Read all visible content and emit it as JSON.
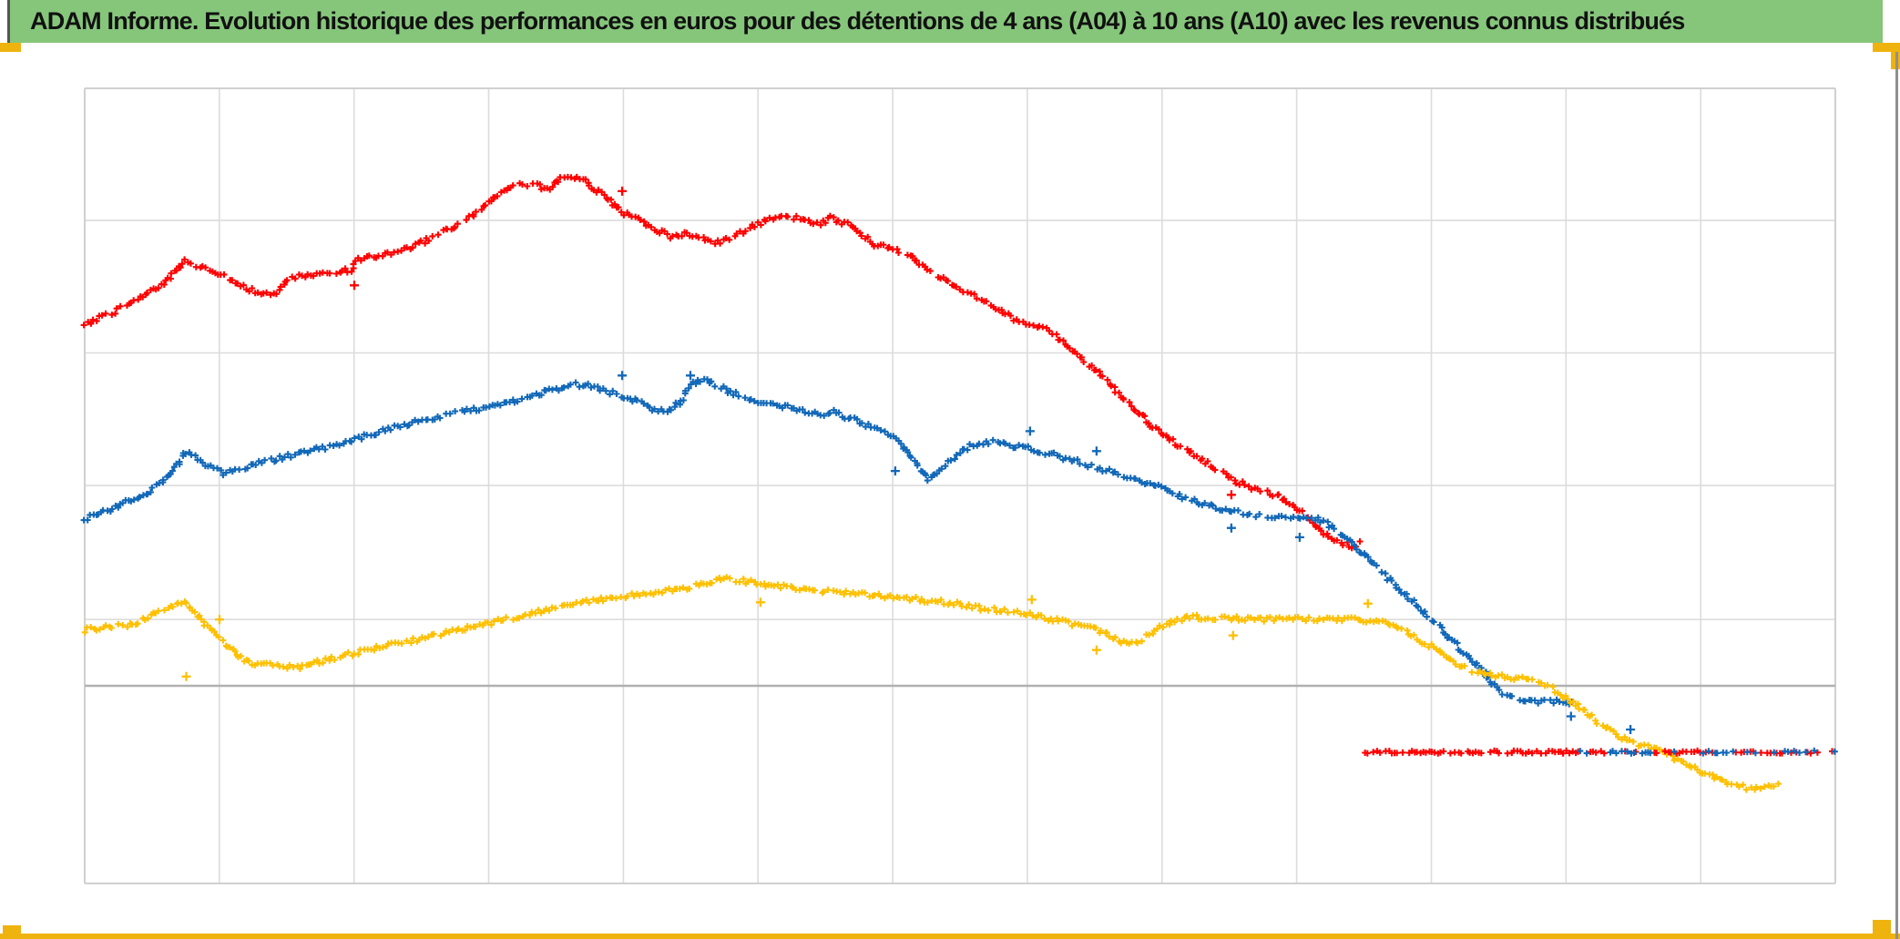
{
  "header": {
    "title": "ADAM Informe. Evolution historique des performances en euros pour des détentions de 4 ans (A04) à 10 ans (A10) avec les revenus connus distribués",
    "bg_color": "#86C67B",
    "text_color": "#111111"
  },
  "decor": {
    "accent_gold": "#EFB310",
    "window_edge_gray": "#909090",
    "banner_left_edge": "#555555"
  },
  "chart_data": {
    "type": "scatter",
    "marker": "+",
    "title": "",
    "xlabel": "",
    "ylabel": "",
    "axes_note": "No axis tick labels are visible in the chart. x is stored as fraction (0-1) of plot width; y is stored in gridline units relative to the darker horizontal reference line (1 unit = one major gridline spacing).",
    "grid": {
      "v_line_count": 14,
      "h_lines_units": [
        3.51,
        2.51,
        1.51,
        0.5
      ],
      "dark_line_unit": 0,
      "top_unit": 4.5,
      "bottom_unit": -1.49,
      "gridline_color": "#DCDCDC",
      "border_color": "#D0D0D0",
      "dark_line_color": "#B0B0B0"
    },
    "series": [
      {
        "name": "series-red",
        "color": "#FE0000",
        "points": [
          [
            0.0,
            2.73
          ],
          [
            0.014,
            2.8
          ],
          [
            0.03,
            2.91
          ],
          [
            0.045,
            3.03
          ],
          [
            0.057,
            3.2
          ],
          [
            0.071,
            3.14
          ],
          [
            0.086,
            3.04
          ],
          [
            0.097,
            2.97
          ],
          [
            0.11,
            2.96
          ],
          [
            0.117,
            3.08
          ],
          [
            0.131,
            3.1
          ],
          [
            0.144,
            3.12
          ],
          [
            0.152,
            3.14
          ],
          [
            0.156,
            3.22
          ],
          [
            0.17,
            3.24
          ],
          [
            0.186,
            3.3
          ],
          [
            0.2,
            3.39
          ],
          [
            0.212,
            3.47
          ],
          [
            0.224,
            3.57
          ],
          [
            0.233,
            3.67
          ],
          [
            0.241,
            3.73
          ],
          [
            0.248,
            3.8
          ],
          [
            0.258,
            3.77
          ],
          [
            0.266,
            3.75
          ],
          [
            0.272,
            3.82
          ],
          [
            0.285,
            3.82
          ],
          [
            0.291,
            3.75
          ],
          [
            0.299,
            3.67
          ],
          [
            0.308,
            3.56
          ],
          [
            0.316,
            3.52
          ],
          [
            0.325,
            3.45
          ],
          [
            0.336,
            3.38
          ],
          [
            0.344,
            3.41
          ],
          [
            0.353,
            3.37
          ],
          [
            0.363,
            3.34
          ],
          [
            0.378,
            3.44
          ],
          [
            0.391,
            3.52
          ],
          [
            0.402,
            3.54
          ],
          [
            0.41,
            3.52
          ],
          [
            0.42,
            3.48
          ],
          [
            0.426,
            3.53
          ],
          [
            0.436,
            3.48
          ],
          [
            0.451,
            3.33
          ],
          [
            0.469,
            3.27
          ],
          [
            0.478,
            3.16
          ],
          [
            0.495,
            3.03
          ],
          [
            0.514,
            2.9
          ],
          [
            0.531,
            2.77
          ],
          [
            0.549,
            2.69
          ],
          [
            0.563,
            2.55
          ],
          [
            0.578,
            2.37
          ],
          [
            0.594,
            2.16
          ],
          [
            0.609,
            1.97
          ],
          [
            0.623,
            1.83
          ],
          [
            0.634,
            1.74
          ],
          [
            0.646,
            1.64
          ],
          [
            0.658,
            1.54
          ],
          [
            0.67,
            1.48
          ],
          [
            0.681,
            1.44
          ],
          [
            0.694,
            1.32
          ],
          [
            0.705,
            1.18
          ],
          [
            0.712,
            1.11
          ],
          [
            0.721,
            1.07
          ],
          [
            0.725,
            1.04
          ],
          [
            0.73,
            1.1
          ]
        ]
      },
      {
        "name": "series-blue",
        "color": "#1268B8",
        "points": [
          [
            0.0,
            1.26
          ],
          [
            0.011,
            1.31
          ],
          [
            0.022,
            1.38
          ],
          [
            0.035,
            1.44
          ],
          [
            0.048,
            1.59
          ],
          [
            0.058,
            1.76
          ],
          [
            0.069,
            1.67
          ],
          [
            0.079,
            1.6
          ],
          [
            0.088,
            1.63
          ],
          [
            0.1,
            1.68
          ],
          [
            0.113,
            1.72
          ],
          [
            0.129,
            1.77
          ],
          [
            0.144,
            1.82
          ],
          [
            0.16,
            1.88
          ],
          [
            0.175,
            1.94
          ],
          [
            0.191,
            2.0
          ],
          [
            0.207,
            2.04
          ],
          [
            0.222,
            2.08
          ],
          [
            0.238,
            2.12
          ],
          [
            0.251,
            2.16
          ],
          [
            0.264,
            2.22
          ],
          [
            0.281,
            2.27
          ],
          [
            0.288,
            2.27
          ],
          [
            0.298,
            2.22
          ],
          [
            0.307,
            2.19
          ],
          [
            0.316,
            2.14
          ],
          [
            0.326,
            2.08
          ],
          [
            0.334,
            2.07
          ],
          [
            0.341,
            2.15
          ],
          [
            0.347,
            2.29
          ],
          [
            0.355,
            2.31
          ],
          [
            0.363,
            2.25
          ],
          [
            0.372,
            2.2
          ],
          [
            0.381,
            2.16
          ],
          [
            0.395,
            2.12
          ],
          [
            0.41,
            2.07
          ],
          [
            0.424,
            2.04
          ],
          [
            0.426,
            2.07
          ],
          [
            0.436,
            2.02
          ],
          [
            0.443,
            1.99
          ],
          [
            0.451,
            1.94
          ],
          [
            0.459,
            1.9
          ],
          [
            0.464,
            1.86
          ],
          [
            0.469,
            1.77
          ],
          [
            0.476,
            1.65
          ],
          [
            0.482,
            1.55
          ],
          [
            0.49,
            1.65
          ],
          [
            0.498,
            1.74
          ],
          [
            0.506,
            1.81
          ],
          [
            0.515,
            1.83
          ],
          [
            0.52,
            1.84
          ],
          [
            0.528,
            1.81
          ],
          [
            0.541,
            1.79
          ],
          [
            0.554,
            1.74
          ],
          [
            0.567,
            1.69
          ],
          [
            0.58,
            1.64
          ],
          [
            0.596,
            1.58
          ],
          [
            0.607,
            1.53
          ],
          [
            0.617,
            1.5
          ],
          [
            0.621,
            1.46
          ],
          [
            0.632,
            1.4
          ],
          [
            0.645,
            1.35
          ],
          [
            0.657,
            1.31
          ],
          [
            0.669,
            1.28
          ],
          [
            0.68,
            1.27
          ],
          [
            0.691,
            1.26
          ],
          [
            0.703,
            1.26
          ],
          [
            0.708,
            1.24
          ],
          [
            0.717,
            1.15
          ],
          [
            0.728,
            1.02
          ],
          [
            0.739,
            0.88
          ],
          [
            0.751,
            0.73
          ],
          [
            0.763,
            0.58
          ],
          [
            0.775,
            0.43
          ],
          [
            0.786,
            0.27
          ],
          [
            0.797,
            0.14
          ],
          [
            0.805,
            0.0
          ],
          [
            0.812,
            -0.08
          ],
          [
            0.82,
            -0.12
          ],
          [
            0.83,
            -0.12
          ],
          [
            0.841,
            -0.12
          ],
          [
            0.852,
            -0.13
          ]
        ]
      },
      {
        "name": "series-yellow",
        "color": "#FFC000",
        "points": [
          [
            0.0,
            0.42
          ],
          [
            0.014,
            0.44
          ],
          [
            0.029,
            0.47
          ],
          [
            0.041,
            0.55
          ],
          [
            0.057,
            0.63
          ],
          [
            0.07,
            0.45
          ],
          [
            0.082,
            0.3
          ],
          [
            0.092,
            0.18
          ],
          [
            0.108,
            0.15
          ],
          [
            0.123,
            0.14
          ],
          [
            0.136,
            0.19
          ],
          [
            0.149,
            0.23
          ],
          [
            0.165,
            0.28
          ],
          [
            0.181,
            0.32
          ],
          [
            0.196,
            0.37
          ],
          [
            0.212,
            0.42
          ],
          [
            0.227,
            0.46
          ],
          [
            0.243,
            0.51
          ],
          [
            0.259,
            0.56
          ],
          [
            0.274,
            0.6
          ],
          [
            0.29,
            0.64
          ],
          [
            0.305,
            0.67
          ],
          [
            0.321,
            0.7
          ],
          [
            0.337,
            0.72
          ],
          [
            0.352,
            0.77
          ],
          [
            0.367,
            0.81
          ],
          [
            0.381,
            0.78
          ],
          [
            0.396,
            0.75
          ],
          [
            0.412,
            0.73
          ],
          [
            0.428,
            0.71
          ],
          [
            0.446,
            0.69
          ],
          [
            0.464,
            0.67
          ],
          [
            0.482,
            0.64
          ],
          [
            0.498,
            0.62
          ],
          [
            0.514,
            0.58
          ],
          [
            0.529,
            0.56
          ],
          [
            0.545,
            0.52
          ],
          [
            0.56,
            0.48
          ],
          [
            0.576,
            0.43
          ],
          [
            0.589,
            0.36
          ],
          [
            0.597,
            0.31
          ],
          [
            0.605,
            0.36
          ],
          [
            0.613,
            0.43
          ],
          [
            0.621,
            0.49
          ],
          [
            0.633,
            0.52
          ],
          [
            0.651,
            0.51
          ],
          [
            0.67,
            0.5
          ],
          [
            0.69,
            0.5
          ],
          [
            0.711,
            0.5
          ],
          [
            0.729,
            0.5
          ],
          [
            0.741,
            0.49
          ],
          [
            0.752,
            0.44
          ],
          [
            0.761,
            0.36
          ],
          [
            0.772,
            0.27
          ],
          [
            0.782,
            0.18
          ],
          [
            0.792,
            0.11
          ],
          [
            0.804,
            0.08
          ],
          [
            0.816,
            0.06
          ],
          [
            0.827,
            0.04
          ],
          [
            0.837,
            -0.01
          ],
          [
            0.847,
            -0.1
          ],
          [
            0.857,
            -0.19
          ],
          [
            0.867,
            -0.3
          ],
          [
            0.878,
            -0.39
          ],
          [
            0.889,
            -0.45
          ],
          [
            0.9,
            -0.49
          ],
          [
            0.91,
            -0.56
          ],
          [
            0.921,
            -0.63
          ],
          [
            0.931,
            -0.69
          ],
          [
            0.942,
            -0.74
          ],
          [
            0.949,
            -0.77
          ],
          [
            0.957,
            -0.77
          ],
          [
            0.965,
            -0.76
          ],
          [
            0.969,
            -0.75
          ]
        ]
      }
    ],
    "flat_segments": [
      {
        "name": "flat-red-only",
        "y": -0.5,
        "x_from": 0.7315,
        "x_to": 0.853,
        "colors": [
          "#FE0000"
        ]
      },
      {
        "name": "flat-mixed-red-blue",
        "y": -0.5,
        "x_from": 0.853,
        "x_to": 1.0,
        "colors": [
          "#FE0000",
          "#1268B8"
        ]
      }
    ],
    "outliers": [
      {
        "color": "#FE0000",
        "x": 0.154,
        "y": 3.02
      },
      {
        "color": "#FE0000",
        "x": 0.307,
        "y": 3.73
      },
      {
        "color": "#FE0000",
        "x": 0.655,
        "y": 1.44
      },
      {
        "color": "#1268B8",
        "x": 0.307,
        "y": 2.34
      },
      {
        "color": "#1268B8",
        "x": 0.346,
        "y": 2.34
      },
      {
        "color": "#1268B8",
        "x": 0.463,
        "y": 1.62
      },
      {
        "color": "#1268B8",
        "x": 0.54,
        "y": 1.92
      },
      {
        "color": "#1268B8",
        "x": 0.578,
        "y": 1.77
      },
      {
        "color": "#1268B8",
        "x": 0.655,
        "y": 1.19
      },
      {
        "color": "#1268B8",
        "x": 0.694,
        "y": 1.12
      },
      {
        "color": "#1268B8",
        "x": 0.849,
        "y": -0.23
      },
      {
        "color": "#1268B8",
        "x": 0.883,
        "y": -0.33
      },
      {
        "color": "#FFC000",
        "x": 0.058,
        "y": 0.07
      },
      {
        "color": "#FFC000",
        "x": 0.077,
        "y": 0.5
      },
      {
        "color": "#FFC000",
        "x": 0.386,
        "y": 0.63
      },
      {
        "color": "#FFC000",
        "x": 0.541,
        "y": 0.65
      },
      {
        "color": "#FFC000",
        "x": 0.578,
        "y": 0.27
      },
      {
        "color": "#FFC000",
        "x": 0.656,
        "y": 0.38
      },
      {
        "color": "#FFC000",
        "x": 0.733,
        "y": 0.62
      }
    ]
  }
}
